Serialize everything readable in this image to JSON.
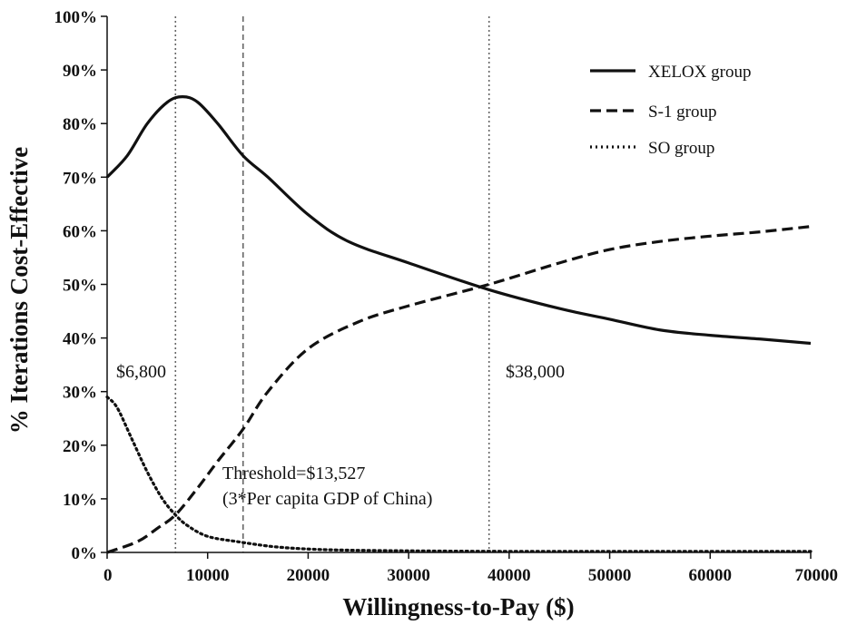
{
  "chart_data": {
    "type": "line",
    "xlabel": "Willingness-to-Pay ($)",
    "ylabel": "% Iterations Cost-Effective",
    "xlim": [
      0,
      70000
    ],
    "ylim": [
      0,
      100
    ],
    "xticks": [
      "0",
      "10000",
      "20000",
      "30000",
      "40000",
      "50000",
      "60000",
      "70000"
    ],
    "yticks": [
      "0%",
      "10%",
      "20%",
      "30%",
      "40%",
      "50%",
      "60%",
      "70%",
      "80%",
      "90%",
      "100%"
    ],
    "grid": false,
    "legend_position": "top-right",
    "series": [
      {
        "name": "XELOX group",
        "style": "solid",
        "x": [
          0,
          2000,
          4000,
          6000,
          7500,
          9000,
          11000,
          13527,
          16000,
          20000,
          24000,
          30000,
          38000,
          45000,
          50000,
          55000,
          60000,
          65000,
          70000
        ],
        "y": [
          70,
          74,
          80,
          84,
          85,
          84,
          80,
          74,
          70,
          63,
          58,
          54,
          49,
          45.5,
          43.5,
          41.5,
          40.5,
          39.8,
          39
        ]
      },
      {
        "name": "S-1 group",
        "style": "dashed",
        "x": [
          0,
          3000,
          5000,
          6800,
          9000,
          11000,
          13527,
          16000,
          20000,
          25000,
          30000,
          38000,
          45000,
          50000,
          55000,
          60000,
          65000,
          70000
        ],
        "y": [
          0,
          2,
          4.5,
          7,
          12,
          17,
          23,
          30,
          38,
          43,
          46,
          50,
          54,
          56.5,
          58,
          59,
          59.8,
          60.8
        ]
      },
      {
        "name": "SO group",
        "style": "dotted",
        "x": [
          0,
          1000,
          2500,
          4000,
          5500,
          6800,
          8000,
          10000,
          13000,
          17000,
          22000,
          30000,
          40000,
          50000,
          60000,
          70000
        ],
        "y": [
          29,
          27,
          21,
          15,
          10,
          7,
          5,
          3,
          2,
          1,
          0.5,
          0.3,
          0.2,
          0.2,
          0.2,
          0.2
        ]
      }
    ],
    "reference_lines": [
      {
        "x": 6800,
        "style": "dotted",
        "label": "$6,800"
      },
      {
        "x": 13527,
        "style": "dashed",
        "label": ""
      },
      {
        "x": 38000,
        "style": "dotted",
        "label": "$38,000"
      }
    ],
    "annotations": [
      "Threshold=$13,527",
      "(3*Per capita GDP of China)"
    ]
  }
}
